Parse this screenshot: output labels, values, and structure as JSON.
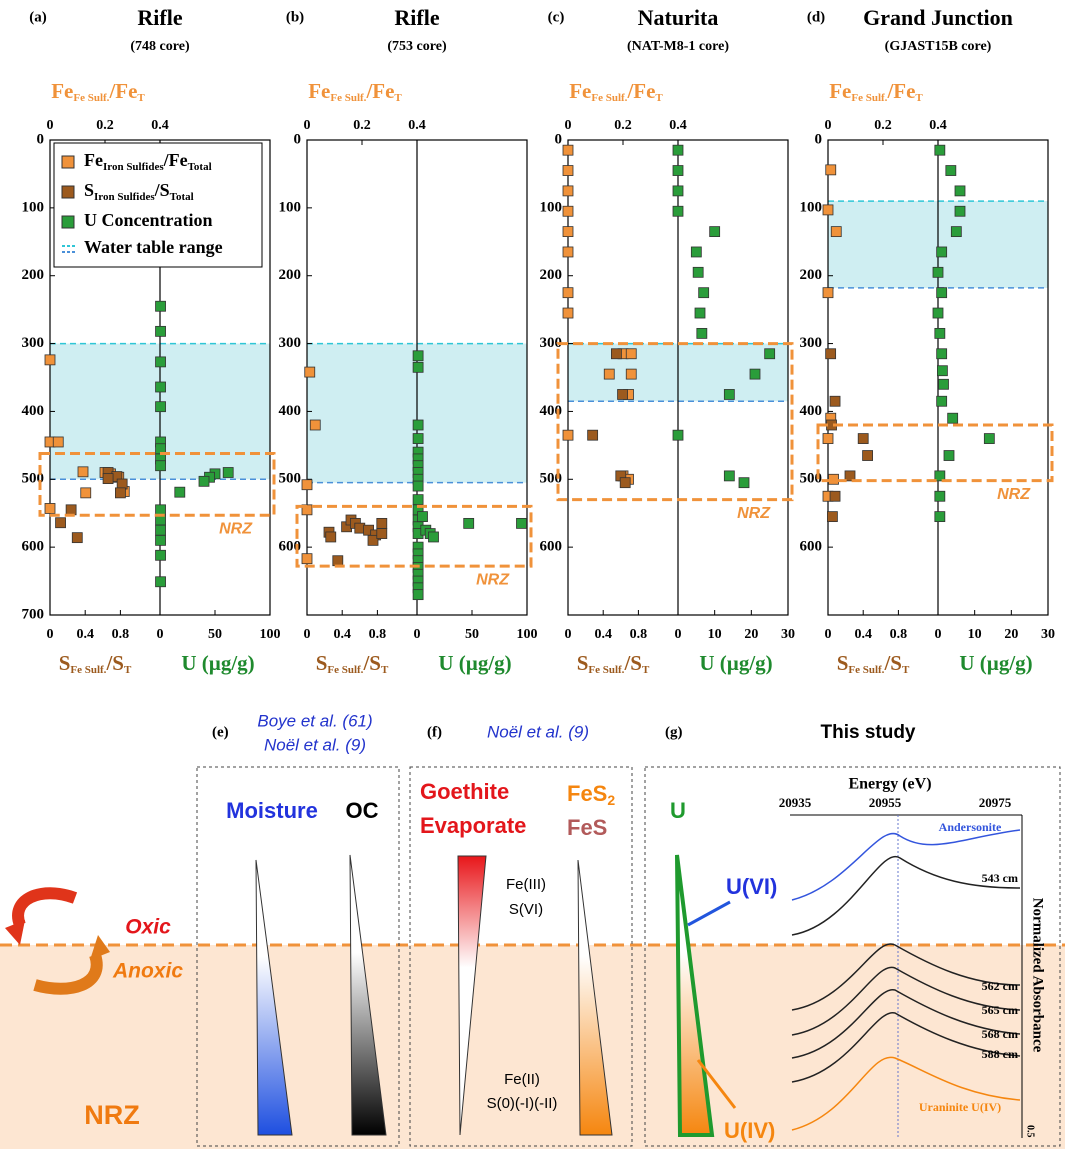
{
  "chart_data": [
    {
      "type": "scatter",
      "label": "(a)",
      "title": "Rifle",
      "subtitle": "(748 core)",
      "ylim": [
        0,
        700
      ],
      "yticks": [
        0,
        100,
        200,
        300,
        400,
        500,
        600,
        700
      ],
      "fe_axis": {
        "label": [
          "Fe",
          "Fe Sulf.",
          "/Fe",
          "T"
        ],
        "xlim": [
          0,
          0.4
        ],
        "xticks": [
          0,
          0.2,
          0.4
        ]
      },
      "s_axis": {
        "label": [
          "S",
          "Fe Sulf.",
          "/S",
          "T"
        ],
        "xlim": [
          0,
          1.25
        ],
        "xticks": [
          0,
          0.4,
          0.8
        ]
      },
      "u_axis": {
        "label": [
          "U (µg/g)"
        ],
        "xlim": [
          0,
          100
        ],
        "xticks": [
          0,
          50,
          100
        ]
      },
      "water_table": [
        300,
        500
      ],
      "water_table_name": "Water table range",
      "nrz": [
        462,
        553
      ],
      "nrz_label": "NRZ",
      "series": [
        {
          "name": [
            "Fe",
            "Iron Sulfides",
            "/Fe",
            "Total"
          ],
          "color": "#f0923a",
          "axis": "fe",
          "x": [
            0,
            0,
            0.03,
            0.12,
            0.13,
            0.2,
            0.22,
            0.25,
            0.27,
            0
          ],
          "values": [
            324,
            445,
            445,
            489,
            520,
            490,
            492,
            497,
            518,
            543
          ]
        },
        {
          "name": [
            "S",
            "Iron Sulfides",
            "/S",
            "Total"
          ],
          "color": "#9c5a1e",
          "axis": "s",
          "x": [
            0.12,
            0.24,
            0.31,
            0.66,
            0.76,
            0.82,
            0.8,
            0.66
          ],
          "values": [
            564,
            545,
            586,
            490,
            496,
            507,
            520,
            499
          ]
        },
        {
          "name": [
            "U Concentration"
          ],
          "color": "#2a9d3a",
          "axis": "u",
          "x": [
            0.5,
            0.5,
            0.5,
            0.5,
            0.5,
            0.5,
            0.5,
            0.5,
            0.5,
            0.5,
            0.5,
            0.5,
            0.5,
            0.5,
            0.5,
            62,
            50,
            45,
            40,
            18
          ],
          "values": [
            245,
            282,
            327,
            364,
            393,
            445,
            455,
            470,
            480,
            545,
            560,
            575,
            590,
            612,
            651,
            490,
            492,
            497,
            503,
            519
          ]
        }
      ]
    },
    {
      "type": "scatter",
      "label": "(b)",
      "title": "Rifle",
      "subtitle": "(753 core)",
      "ylim": [
        0,
        700
      ],
      "yticks": [
        0,
        100,
        200,
        300,
        400,
        500,
        600
      ],
      "fe_axis": {
        "label": [
          "Fe",
          "Fe Sulf.",
          "/Fe",
          "T"
        ],
        "xlim": [
          0,
          0.4
        ],
        "xticks": [
          0,
          0.2,
          0.4
        ]
      },
      "s_axis": {
        "label": [
          "S",
          "Fe Sulf.",
          "/S",
          "T"
        ],
        "xlim": [
          0,
          1.25
        ],
        "xticks": [
          0,
          0.4,
          0.8
        ]
      },
      "u_axis": {
        "label": [
          "U (µg/g)"
        ],
        "xlim": [
          0,
          100
        ],
        "xticks": [
          0,
          50,
          100
        ]
      },
      "water_table": [
        300,
        505
      ],
      "nrz": [
        540,
        628
      ],
      "nrz_label": "NRZ",
      "series": [
        {
          "color": "#f0923a",
          "axis": "fe",
          "x": [
            0.01,
            0.03,
            0,
            0,
            0
          ],
          "values": [
            342,
            420,
            508,
            545,
            617
          ]
        },
        {
          "color": "#9c5a1e",
          "axis": "s",
          "x": [
            0.25,
            0.27,
            0.45,
            0.5,
            0.55,
            0.6,
            0.7,
            0.78,
            0.75,
            0.85,
            0.85,
            0.35
          ],
          "values": [
            578,
            585,
            570,
            560,
            565,
            572,
            575,
            582,
            590,
            565,
            580,
            620
          ]
        },
        {
          "color": "#2a9d3a",
          "axis": "u",
          "x": [
            1,
            1,
            1,
            1,
            1,
            1,
            1,
            1,
            1,
            1,
            1,
            1,
            1,
            1,
            1,
            1,
            1,
            1,
            1,
            1,
            1,
            1,
            1,
            47,
            95,
            8,
            12,
            15,
            5
          ],
          "values": [
            318,
            335,
            420,
            440,
            460,
            470,
            480,
            490,
            500,
            510,
            530,
            545,
            560,
            570,
            580,
            600,
            610,
            620,
            630,
            640,
            650,
            660,
            670,
            565,
            565,
            575,
            580,
            585,
            555
          ]
        }
      ]
    },
    {
      "type": "scatter",
      "label": "(c)",
      "title": "Naturita",
      "subtitle": "(NAT-M8-1 core)",
      "ylim": [
        0,
        700
      ],
      "yticks": [
        0,
        100,
        200,
        300,
        400,
        500,
        600
      ],
      "fe_axis": {
        "label": [
          "Fe",
          "Fe Sulf.",
          "/Fe",
          "T"
        ],
        "xlim": [
          0,
          0.4
        ],
        "xticks": [
          0,
          0.2,
          0.4
        ]
      },
      "s_axis": {
        "label": [
          "S",
          "Fe Sulf.",
          "/S",
          "T"
        ],
        "xlim": [
          0,
          1.25
        ],
        "xticks": [
          0,
          0.4,
          0.8
        ]
      },
      "u_axis": {
        "label": [
          "U (µg/g)"
        ],
        "xlim": [
          0,
          30
        ],
        "xticks": [
          0,
          10,
          20,
          30
        ]
      },
      "water_table": [
        300,
        385
      ],
      "nrz": [
        300,
        530
      ],
      "nrz_label": "NRZ",
      "series": [
        {
          "color": "#f0923a",
          "axis": "fe",
          "x": [
            0,
            0,
            0,
            0,
            0,
            0,
            0,
            0,
            0,
            0.2,
            0.15,
            0.23,
            0.23,
            0.22,
            0.2,
            0.22
          ],
          "values": [
            15,
            45,
            75,
            105,
            135,
            165,
            225,
            255,
            435,
            315,
            345,
            315,
            345,
            375,
            495,
            500
          ]
        },
        {
          "color": "#9c5a1e",
          "axis": "s",
          "x": [
            0.55,
            0.62,
            0.28,
            0.6,
            0.65
          ],
          "values": [
            315,
            375,
            435,
            495,
            505
          ]
        },
        {
          "color": "#2a9d3a",
          "axis": "u",
          "x": [
            0,
            0,
            0,
            0,
            10,
            5,
            5.5,
            7,
            6,
            6.5,
            25,
            21,
            14,
            0,
            14,
            18
          ],
          "values": [
            15,
            45,
            75,
            105,
            135,
            165,
            195,
            225,
            255,
            285,
            315,
            345,
            375,
            435,
            495,
            505
          ]
        }
      ]
    },
    {
      "type": "scatter",
      "label": "(d)",
      "title": "Grand Junction",
      "subtitle": "(GJAST15B core)",
      "ylim": [
        0,
        700
      ],
      "yticks": [
        0,
        100,
        200,
        300,
        400,
        500,
        600
      ],
      "fe_axis": {
        "label": [
          "Fe",
          "Fe Sulf.",
          "/Fe",
          "T"
        ],
        "xlim": [
          0,
          0.4
        ],
        "xticks": [
          0,
          0.2,
          0.4
        ]
      },
      "s_axis": {
        "label": [
          "S",
          "Fe Sulf.",
          "/S",
          "T"
        ],
        "xlim": [
          0,
          1.25
        ],
        "xticks": [
          0,
          0.4,
          0.8
        ]
      },
      "u_axis": {
        "label": [
          "U (µg/g)"
        ],
        "xlim": [
          0,
          30
        ],
        "xticks": [
          0,
          10,
          20,
          30
        ]
      },
      "water_table": [
        90,
        218
      ],
      "nrz": [
        420,
        502
      ],
      "nrz_label": "NRZ",
      "series": [
        {
          "color": "#f0923a",
          "axis": "fe",
          "x": [
            0.01,
            0,
            0.03,
            0,
            0.01,
            0,
            0.02,
            0
          ],
          "values": [
            44,
            103,
            135,
            225,
            410,
            440,
            500,
            525
          ]
        },
        {
          "color": "#9c5a1e",
          "axis": "s",
          "x": [
            0.03,
            0.08,
            0.04,
            0.4,
            0.45,
            0.25,
            0.08,
            0.05
          ],
          "values": [
            315,
            385,
            420,
            440,
            465,
            495,
            525,
            555
          ]
        },
        {
          "color": "#2a9d3a",
          "axis": "u",
          "x": [
            0.5,
            3.5,
            6,
            6,
            5,
            1,
            0,
            1,
            0,
            0.5,
            1,
            1.2,
            1.5,
            1,
            4,
            14,
            3,
            0.5,
            0.5,
            0.5
          ],
          "values": [
            15,
            45,
            75,
            105,
            135,
            165,
            195,
            225,
            255,
            285,
            315,
            340,
            360,
            385,
            410,
            440,
            465,
            495,
            525,
            555
          ]
        }
      ]
    }
  ],
  "schematic": {
    "e": {
      "label": "(e)",
      "refs": [
        "Boye et al. (61)",
        "Noël et al. (9)"
      ],
      "moisture": "Moisture",
      "oc": "OC"
    },
    "f": {
      "label": "(f)",
      "ref": "Noël et al. (9)",
      "goethite": "Goethite",
      "evaporate": "Evaporate",
      "fes2": [
        "FeS",
        "2"
      ],
      "fes": "FeS",
      "top_state": [
        "Fe(III)",
        "S(VI)"
      ],
      "bottom_state": [
        "Fe(II)",
        "S(0)(-I)(-II)"
      ]
    },
    "g": {
      "label": "(g)",
      "ref": "This study",
      "u": "U",
      "u6": "U(VI)",
      "u4": "U(IV)",
      "inset": {
        "axis_label": "Energy (eV)",
        "ticks": [
          "20935",
          "20955",
          "20975"
        ],
        "andersonite": "Andersonite",
        "depths": [
          "543 cm",
          "562 cm",
          "565 cm",
          "568 cm",
          "588 cm"
        ],
        "uraninite": "Uraninite U(IV)",
        "y_label": "Normalized Absorbance",
        "scale": "0.5"
      }
    },
    "oxic": "Oxic",
    "anoxic": "Anoxic",
    "nrz": "NRZ"
  }
}
